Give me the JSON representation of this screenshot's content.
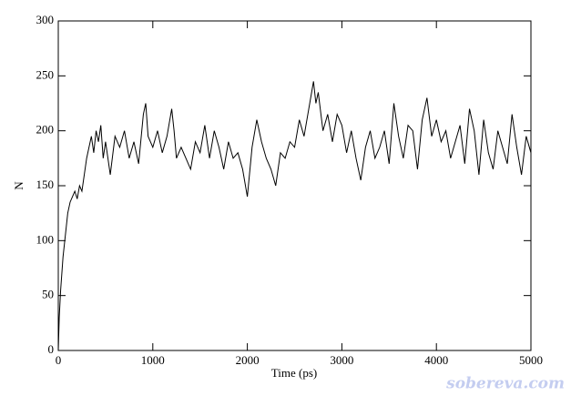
{
  "chart_data": {
    "type": "line",
    "xlabel": "Time (ps)",
    "ylabel": "N",
    "x": [
      0,
      10,
      25,
      50,
      75,
      100,
      125,
      150,
      175,
      200,
      225,
      250,
      275,
      300,
      325,
      350,
      375,
      400,
      425,
      450,
      475,
      500,
      550,
      600,
      650,
      700,
      750,
      800,
      850,
      900,
      925,
      950,
      1000,
      1050,
      1100,
      1150,
      1200,
      1225,
      1250,
      1300,
      1350,
      1400,
      1450,
      1500,
      1550,
      1600,
      1650,
      1700,
      1750,
      1800,
      1850,
      1900,
      1950,
      2000,
      2050,
      2100,
      2150,
      2200,
      2250,
      2300,
      2350,
      2400,
      2450,
      2500,
      2550,
      2600,
      2650,
      2700,
      2725,
      2750,
      2800,
      2850,
      2900,
      2950,
      3000,
      3050,
      3100,
      3150,
      3200,
      3250,
      3300,
      3350,
      3400,
      3450,
      3500,
      3550,
      3600,
      3650,
      3700,
      3750,
      3800,
      3850,
      3900,
      3950,
      4000,
      4050,
      4100,
      4150,
      4200,
      4250,
      4300,
      4350,
      4400,
      4450,
      4500,
      4550,
      4600,
      4650,
      4700,
      4750,
      4800,
      4850,
      4900,
      4950,
      5000
    ],
    "series": [
      {
        "name": "N",
        "color": "#000000",
        "values": [
          0,
          30,
          55,
          85,
          105,
          125,
          135,
          140,
          145,
          138,
          150,
          145,
          160,
          175,
          185,
          195,
          180,
          200,
          190,
          205,
          175,
          190,
          160,
          195,
          185,
          200,
          175,
          190,
          170,
          215,
          225,
          195,
          185,
          200,
          180,
          195,
          220,
          200,
          175,
          185,
          175,
          165,
          190,
          180,
          205,
          175,
          200,
          185,
          165,
          190,
          175,
          180,
          165,
          140,
          185,
          210,
          190,
          175,
          165,
          150,
          180,
          175,
          190,
          185,
          210,
          195,
          220,
          245,
          225,
          235,
          200,
          215,
          190,
          215,
          205,
          180,
          200,
          175,
          155,
          185,
          200,
          175,
          185,
          200,
          170,
          225,
          195,
          175,
          205,
          200,
          165,
          210,
          230,
          195,
          210,
          190,
          200,
          175,
          190,
          205,
          170,
          220,
          200,
          160,
          210,
          180,
          165,
          200,
          185,
          170,
          215,
          185,
          160,
          195,
          180
        ]
      }
    ],
    "xlim": [
      0,
      5000
    ],
    "xticks": [
      0,
      1000,
      2000,
      3000,
      4000,
      5000
    ],
    "ylim": [
      0,
      300
    ],
    "yticks": [
      0,
      50,
      100,
      150,
      200,
      250,
      300
    ],
    "watermark": "sobereva.com"
  }
}
